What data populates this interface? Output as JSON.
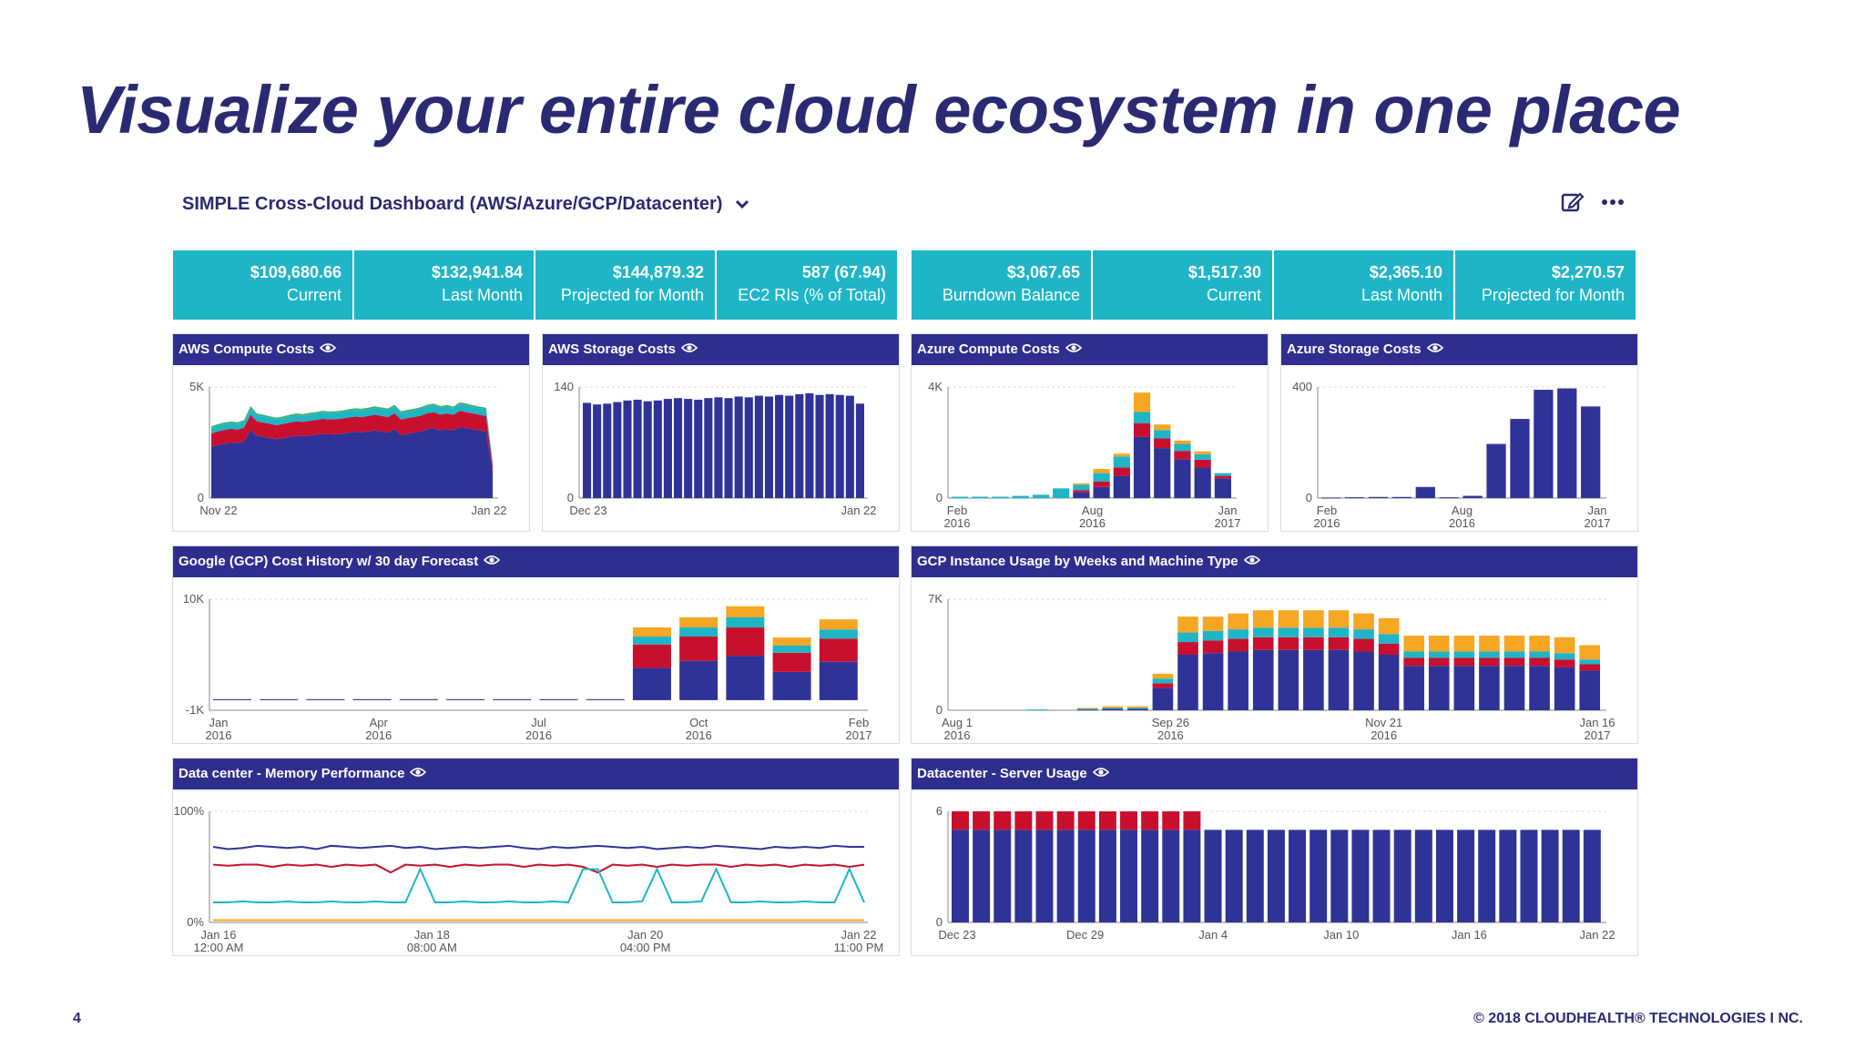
{
  "slide": {
    "title": "Visualize your entire cloud ecosystem in one place",
    "page_number": "4",
    "copyright": "© 2018 CLOUDHEALTH® TECHNOLOGIES I NC."
  },
  "dashboard": {
    "title": "SIMPLE Cross-Cloud Dashboard (AWS/Azure/GCP/Datacenter)",
    "icons": [
      "chevron-down-icon",
      "edit-icon",
      "more-icon"
    ]
  },
  "stats": [
    {
      "value": "$109,680.66",
      "label": "Current"
    },
    {
      "value": "$132,941.84",
      "label": "Last Month"
    },
    {
      "value": "$144,879.32",
      "label": "Projected for Month"
    },
    {
      "value": "587 (67.94)",
      "label": "EC2 RIs (% of Total)"
    },
    {
      "value": "$3,067.65",
      "label": "Burndown Balance"
    },
    {
      "value": "$1,517.30",
      "label": "Current"
    },
    {
      "value": "$2,365.10",
      "label": "Last Month"
    },
    {
      "value": "$2,270.57",
      "label": "Projected for Month"
    }
  ],
  "colors": {
    "accent_teal": "#1eb5c7",
    "header_navy": "#2e2e8f",
    "title_navy": "#2a2a72",
    "series_blue": "#2f3397",
    "series_red": "#c8102e",
    "series_teal": "#1eb5c7",
    "series_orange": "#f5a623",
    "series_green": "#3cb371"
  },
  "chart_data": [
    {
      "id": "aws_compute",
      "type": "area",
      "title": "AWS Compute Costs",
      "yticks": [
        "5K",
        "0"
      ],
      "xticks": [
        "Nov 22",
        "Jan 22"
      ],
      "ylim": [
        0,
        5000
      ],
      "series": [
        {
          "name": "base",
          "color": "#2f3397",
          "values": [
            2300,
            2400,
            2450,
            2500,
            2480,
            2550,
            3050,
            2800,
            2750,
            2700,
            2650,
            2700,
            2750,
            2800,
            2780,
            2820,
            2850,
            2900,
            2870,
            2880,
            2900,
            2950,
            2980,
            2960,
            3000,
            3050,
            3000,
            2950,
            3100,
            2850,
            2900,
            2950,
            3000,
            3100,
            3150,
            3050,
            3100,
            3050,
            3200,
            3150,
            3100,
            3050,
            3000,
            1200
          ]
        },
        {
          "name": "red",
          "color": "#c8102e",
          "values": [
            600,
            600,
            620,
            620,
            600,
            620,
            700,
            650,
            650,
            640,
            630,
            640,
            650,
            660,
            650,
            660,
            660,
            670,
            670,
            670,
            680,
            680,
            690,
            690,
            700,
            700,
            700,
            700,
            720,
            690,
            700,
            700,
            710,
            720,
            720,
            710,
            710,
            700,
            730,
            720,
            710,
            700,
            700,
            250
          ]
        },
        {
          "name": "teal",
          "color": "#1eb5c7",
          "values": [
            250,
            250,
            250,
            250,
            250,
            260,
            300,
            270,
            270,
            260,
            260,
            260,
            270,
            270,
            270,
            270,
            280,
            280,
            280,
            280,
            280,
            290,
            290,
            290,
            290,
            300,
            300,
            300,
            300,
            290,
            290,
            290,
            300,
            300,
            300,
            300,
            300,
            290,
            300,
            300,
            290,
            290,
            290,
            120
          ]
        },
        {
          "name": "green",
          "color": "#3cb371",
          "values": [
            80,
            80,
            80,
            80,
            80,
            80,
            90,
            80,
            80,
            80,
            80,
            80,
            80,
            80,
            80,
            80,
            80,
            80,
            80,
            80,
            80,
            80,
            80,
            80,
            80,
            80,
            80,
            80,
            80,
            80,
            80,
            80,
            80,
            80,
            80,
            80,
            80,
            80,
            80,
            80,
            80,
            80,
            80,
            40
          ]
        }
      ]
    },
    {
      "id": "aws_storage",
      "type": "bar",
      "title": "AWS Storage Costs",
      "yticks": [
        "140",
        "0"
      ],
      "xticks": [
        "Dec 23",
        "Jan 22"
      ],
      "ylim": [
        0,
        140
      ],
      "series": [
        {
          "name": "storage",
          "color": "#2f3397",
          "values": [
            120,
            118,
            119,
            121,
            123,
            124,
            122,
            123,
            125,
            126,
            125,
            124,
            126,
            127,
            126,
            128,
            127,
            129,
            128,
            130,
            129,
            131,
            132,
            130,
            131,
            130,
            129,
            119
          ]
        }
      ]
    },
    {
      "id": "azure_compute",
      "type": "bar",
      "title": "Azure Compute Costs",
      "yticks": [
        "4K",
        "0"
      ],
      "xticks": [
        "Feb 2016",
        "Aug 2016",
        "Jan 2017"
      ],
      "ylim": [
        0,
        4000
      ],
      "series": [
        {
          "name": "blue",
          "color": "#2f3397",
          "values": [
            0,
            0,
            0,
            0,
            0,
            0,
            200,
            400,
            800,
            2200,
            1800,
            1400,
            1100,
            700
          ]
        },
        {
          "name": "red",
          "color": "#c8102e",
          "values": [
            0,
            0,
            0,
            0,
            0,
            0,
            80,
            200,
            300,
            500,
            350,
            300,
            280,
            100
          ]
        },
        {
          "name": "teal",
          "color": "#1eb5c7",
          "values": [
            50,
            50,
            50,
            80,
            120,
            350,
            200,
            300,
            400,
            400,
            300,
            250,
            200,
            100
          ]
        },
        {
          "name": "orange",
          "color": "#f5a623",
          "values": [
            0,
            0,
            0,
            0,
            0,
            0,
            50,
            150,
            100,
            700,
            200,
            120,
            100,
            0
          ]
        }
      ]
    },
    {
      "id": "azure_storage",
      "type": "bar",
      "title": "Azure Storage Costs",
      "yticks": [
        "400",
        "0"
      ],
      "xticks": [
        "Feb 2016",
        "Aug 2016",
        "Jan 2017"
      ],
      "ylim": [
        0,
        400
      ],
      "series": [
        {
          "name": "storage",
          "color": "#2f3397",
          "values": [
            2,
            3,
            4,
            4,
            40,
            3,
            8,
            195,
            285,
            390,
            395,
            330
          ]
        }
      ]
    },
    {
      "id": "gcp_history",
      "type": "bar",
      "title": "Google (GCP) Cost History w/ 30 day Forecast",
      "yticks": [
        "10K",
        "-1K"
      ],
      "xticks": [
        "Jan 2016",
        "Apr 2016",
        "Jul 2016",
        "Oct 2016",
        "Feb 2017"
      ],
      "ylim": [
        -1000,
        10000
      ],
      "series": [
        {
          "name": "blue",
          "color": "#2f3397",
          "values": [
            100,
            100,
            100,
            100,
            100,
            100,
            100,
            100,
            100,
            3200,
            3900,
            4400,
            2800,
            3800
          ]
        },
        {
          "name": "red",
          "color": "#c8102e",
          "values": [
            0,
            0,
            0,
            0,
            0,
            0,
            0,
            0,
            0,
            2300,
            2400,
            2800,
            1900,
            2300
          ]
        },
        {
          "name": "teal",
          "color": "#1eb5c7",
          "values": [
            0,
            0,
            0,
            0,
            0,
            0,
            0,
            0,
            0,
            800,
            900,
            1000,
            700,
            900
          ]
        },
        {
          "name": "orange",
          "color": "#f5a623",
          "values": [
            0,
            0,
            0,
            0,
            0,
            0,
            0,
            0,
            0,
            900,
            1000,
            1100,
            800,
            1000
          ]
        }
      ]
    },
    {
      "id": "gcp_instances",
      "type": "bar",
      "title": "GCP Instance Usage by Weeks and Machine Type",
      "yticks": [
        "7K",
        "0"
      ],
      "xticks": [
        "Aug 1 2016",
        "Sep 26 2016",
        "Nov 21 2016",
        "Jan 16 2017"
      ],
      "ylim": [
        0,
        7000
      ],
      "series": [
        {
          "name": "blue",
          "color": "#2f3397",
          "values": [
            0,
            0,
            0,
            0,
            0,
            50,
            100,
            100,
            1400,
            3500,
            3600,
            3700,
            3800,
            3800,
            3800,
            3800,
            3700,
            3500,
            2800,
            2800,
            2800,
            2800,
            2800,
            2800,
            2700,
            2500
          ]
        },
        {
          "name": "red",
          "color": "#c8102e",
          "values": [
            0,
            0,
            0,
            0,
            0,
            0,
            0,
            0,
            300,
            800,
            800,
            800,
            800,
            800,
            800,
            800,
            800,
            700,
            500,
            500,
            500,
            500,
            500,
            500,
            500,
            400
          ]
        },
        {
          "name": "teal",
          "color": "#1eb5c7",
          "values": [
            0,
            0,
            0,
            50,
            0,
            50,
            50,
            50,
            300,
            600,
            600,
            600,
            600,
            600,
            600,
            600,
            600,
            600,
            400,
            400,
            400,
            400,
            400,
            400,
            400,
            300
          ]
        },
        {
          "name": "orange",
          "color": "#f5a623",
          "values": [
            0,
            0,
            0,
            0,
            0,
            50,
            100,
            100,
            300,
            1000,
            900,
            1000,
            1100,
            1100,
            1100,
            1100,
            1000,
            1000,
            1000,
            1000,
            1000,
            1000,
            1000,
            1000,
            1000,
            900
          ]
        }
      ]
    },
    {
      "id": "dc_memory",
      "type": "line",
      "title": "Data center - Memory Performance",
      "yticks": [
        "100%",
        "0%"
      ],
      "xticks": [
        "Jan 16 12:00 AM",
        "Jan 18 08:00 AM",
        "Jan 20 04:00 PM",
        "Jan 22 11:00 PM"
      ],
      "ylim": [
        0,
        100
      ],
      "series": [
        {
          "name": "blue",
          "color": "#2f3397",
          "values": [
            68,
            66,
            67,
            69,
            68,
            67,
            68,
            66,
            69,
            68,
            67,
            68,
            69,
            67,
            68,
            66,
            67,
            68,
            67,
            68,
            69,
            67,
            66,
            68,
            67,
            68,
            69,
            68,
            67,
            68,
            66,
            67,
            68,
            67,
            69,
            68,
            67,
            66,
            68,
            67,
            68,
            67,
            69,
            68,
            68
          ]
        },
        {
          "name": "red",
          "color": "#c8102e",
          "values": [
            52,
            51,
            52,
            52,
            50,
            52,
            51,
            52,
            50,
            52,
            51,
            52,
            45,
            52,
            51,
            52,
            50,
            52,
            51,
            52,
            52,
            50,
            52,
            51,
            52,
            50,
            45,
            52,
            51,
            52,
            50,
            52,
            51,
            52,
            52,
            50,
            52,
            51,
            52,
            50,
            52,
            51,
            52,
            50,
            52
          ]
        },
        {
          "name": "teal",
          "color": "#1eb5c7",
          "values": [
            18,
            18,
            19,
            18,
            18,
            19,
            18,
            18,
            19,
            18,
            18,
            19,
            18,
            18,
            48,
            18,
            18,
            19,
            18,
            18,
            19,
            18,
            18,
            19,
            18,
            48,
            48,
            18,
            18,
            19,
            48,
            18,
            18,
            19,
            48,
            18,
            18,
            19,
            18,
            18,
            19,
            18,
            18,
            48,
            18
          ]
        },
        {
          "name": "orange",
          "color": "#f5a623",
          "values": [
            2,
            2,
            2,
            2,
            2,
            2,
            2,
            2,
            2,
            2,
            2,
            2,
            2,
            2,
            2,
            2,
            2,
            2,
            2,
            2,
            2,
            2,
            2,
            2,
            2,
            2,
            2,
            2,
            2,
            2,
            2,
            2,
            2,
            2,
            2,
            2,
            2,
            2,
            2,
            2,
            2,
            2,
            2,
            2,
            2
          ]
        }
      ]
    },
    {
      "id": "dc_server",
      "type": "bar",
      "title": "Datacenter - Server Usage",
      "yticks": [
        "6",
        "0"
      ],
      "xticks": [
        "Dec 23",
        "Dec 29",
        "Jan 4",
        "Jan 10",
        "Jan 16",
        "Jan 22"
      ],
      "ylim": [
        0,
        6
      ],
      "series": [
        {
          "name": "blue",
          "color": "#2f3397",
          "values": [
            5,
            5,
            5,
            5,
            5,
            5,
            5,
            5,
            5,
            5,
            5,
            5,
            5,
            5,
            5,
            5,
            5,
            5,
            5,
            5,
            5,
            5,
            5,
            5,
            5,
            5,
            5,
            5,
            5,
            5,
            5
          ]
        },
        {
          "name": "red",
          "color": "#c8102e",
          "values": [
            1,
            1,
            1,
            1,
            1,
            1,
            1,
            1,
            1,
            1,
            1,
            1,
            0,
            0,
            0,
            0,
            0,
            0,
            0,
            0,
            0,
            0,
            0,
            0,
            0,
            0,
            0,
            0,
            0,
            0,
            0
          ]
        }
      ]
    }
  ]
}
